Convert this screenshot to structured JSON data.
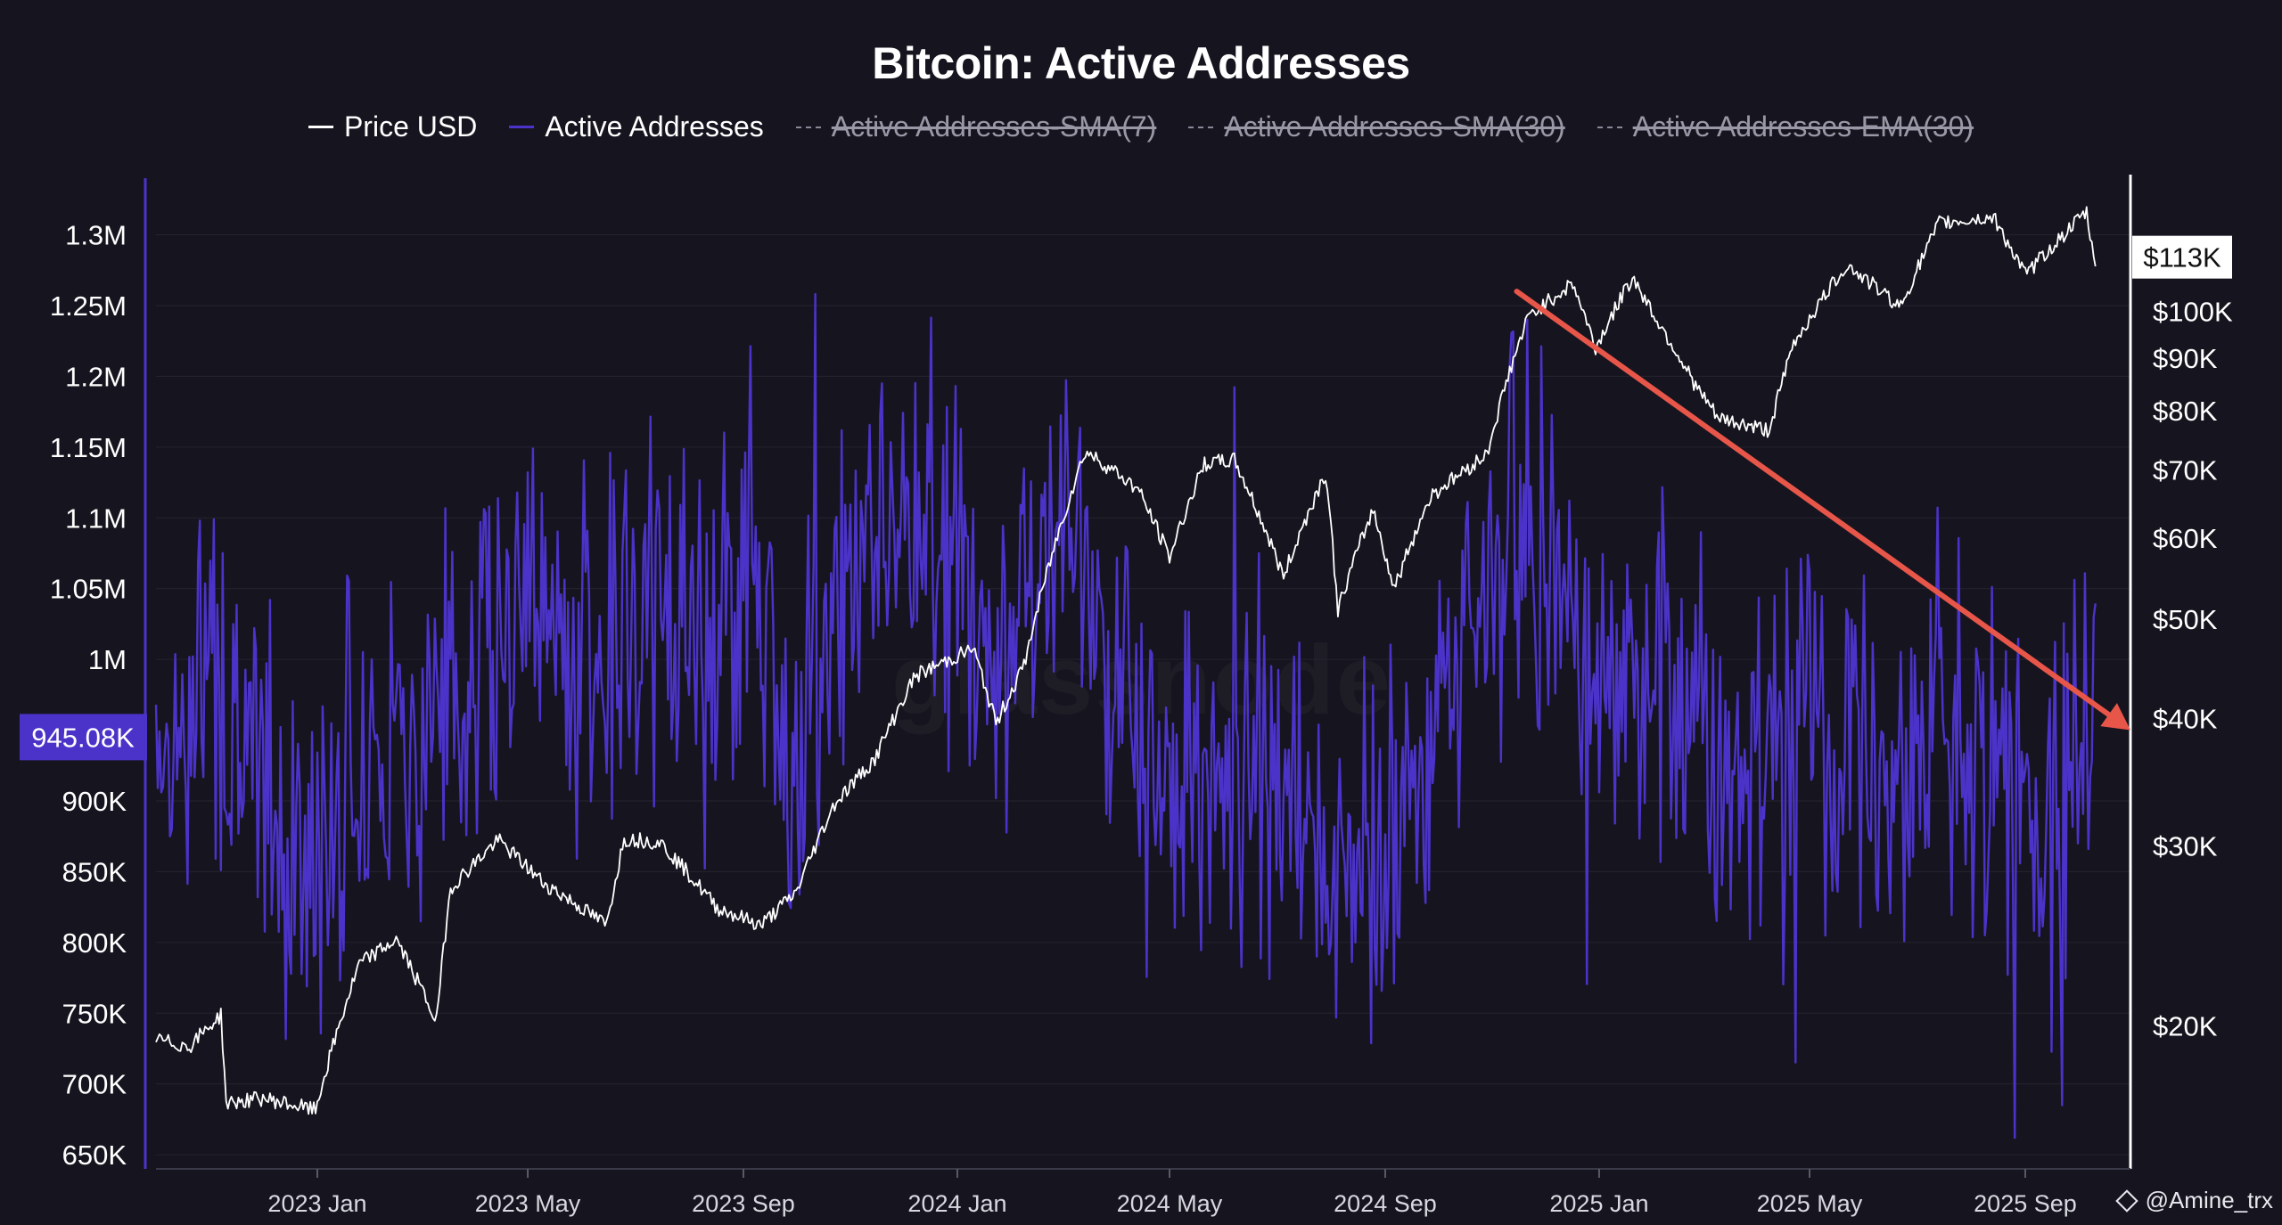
{
  "chart_data": {
    "type": "line",
    "title": "Bitcoin: Active Addresses",
    "legend": [
      {
        "name": "Price USD",
        "color": "#ffffff",
        "hidden": false
      },
      {
        "name": "Active Addresses",
        "color": "#4b33c9",
        "hidden": false
      },
      {
        "name": "Active Addresses-SMA(7)",
        "color": "#8a8896",
        "hidden": true
      },
      {
        "name": "Active Addresses-SMA(30)",
        "color": "#8a8896",
        "hidden": true
      },
      {
        "name": "Active Addresses-EMA(30)",
        "color": "#8a8896",
        "hidden": true
      }
    ],
    "x_axis": {
      "range": [
        "2022-10-01",
        "2025-10-31"
      ],
      "ticks": [
        {
          "label": "2023 Jan",
          "date": "2023-01-01"
        },
        {
          "label": "2023 May",
          "date": "2023-05-01"
        },
        {
          "label": "2023 Sep",
          "date": "2023-09-01"
        },
        {
          "label": "2024 Jan",
          "date": "2024-01-01"
        },
        {
          "label": "2024 May",
          "date": "2024-05-01"
        },
        {
          "label": "2024 Sep",
          "date": "2024-09-01"
        },
        {
          "label": "2025 Jan",
          "date": "2025-01-01"
        },
        {
          "label": "2025 May",
          "date": "2025-05-01"
        },
        {
          "label": "2025 Sep",
          "date": "2025-09-01"
        }
      ]
    },
    "y_left": {
      "range": [
        640000,
        1340000
      ],
      "ticks": [
        {
          "label": "1.3M",
          "value": 1300000
        },
        {
          "label": "1.25M",
          "value": 1250000
        },
        {
          "label": "1.2M",
          "value": 1200000
        },
        {
          "label": "1.15M",
          "value": 1150000
        },
        {
          "label": "1.1M",
          "value": 1100000
        },
        {
          "label": "1.05M",
          "value": 1050000
        },
        {
          "label": "1M",
          "value": 1000000
        },
        {
          "label": "900K",
          "value": 900000
        },
        {
          "label": "850K",
          "value": 850000
        },
        {
          "label": "800K",
          "value": 800000
        },
        {
          "label": "750K",
          "value": 750000
        },
        {
          "label": "700K",
          "value": 700000
        },
        {
          "label": "650K",
          "value": 650000
        }
      ],
      "current": {
        "label": "945.08K",
        "value": 945080
      }
    },
    "y_right": {
      "scale": "log",
      "range": [
        14500,
        135000
      ],
      "ticks": [
        {
          "label": "$100K",
          "value": 100000
        },
        {
          "label": "$90K",
          "value": 90000
        },
        {
          "label": "$80K",
          "value": 80000
        },
        {
          "label": "$70K",
          "value": 70000
        },
        {
          "label": "$60K",
          "value": 60000
        },
        {
          "label": "$50K",
          "value": 50000
        },
        {
          "label": "$40K",
          "value": 40000
        },
        {
          "label": "$30K",
          "value": 30000
        },
        {
          "label": "$20K",
          "value": 20000
        }
      ],
      "current": {
        "label": "$113K",
        "value": 113000
      }
    },
    "series": [
      {
        "name": "Price USD",
        "axis": "right",
        "points": [
          [
            "2022-10-01",
            19400
          ],
          [
            "2022-10-20",
            19100
          ],
          [
            "2022-11-07",
            20500
          ],
          [
            "2022-11-10",
            16800
          ],
          [
            "2022-12-01",
            17000
          ],
          [
            "2022-12-31",
            16550
          ],
          [
            "2023-01-13",
            19900
          ],
          [
            "2023-01-25",
            23000
          ],
          [
            "2023-02-15",
            24300
          ],
          [
            "2023-03-10",
            20200
          ],
          [
            "2023-03-18",
            27300
          ],
          [
            "2023-04-14",
            30400
          ],
          [
            "2023-05-10",
            27600
          ],
          [
            "2023-06-15",
            25100
          ],
          [
            "2023-06-25",
            30500
          ],
          [
            "2023-07-15",
            30300
          ],
          [
            "2023-08-17",
            26100
          ],
          [
            "2023-09-11",
            25100
          ],
          [
            "2023-10-01",
            27000
          ],
          [
            "2023-10-23",
            33000
          ],
          [
            "2023-11-15",
            36500
          ],
          [
            "2023-12-08",
            44000
          ],
          [
            "2024-01-10",
            46800
          ],
          [
            "2024-01-23",
            39500
          ],
          [
            "2024-02-08",
            45000
          ],
          [
            "2024-02-28",
            61000
          ],
          [
            "2024-03-14",
            73000
          ],
          [
            "2024-04-01",
            69500
          ],
          [
            "2024-04-13",
            67000
          ],
          [
            "2024-05-01",
            57500
          ],
          [
            "2024-05-21",
            71000
          ],
          [
            "2024-06-07",
            71500
          ],
          [
            "2024-07-05",
            55000
          ],
          [
            "2024-07-29",
            69500
          ],
          [
            "2024-08-05",
            51000
          ],
          [
            "2024-08-25",
            64000
          ],
          [
            "2024-09-06",
            53500
          ],
          [
            "2024-09-27",
            66000
          ],
          [
            "2024-10-29",
            72500
          ],
          [
            "2024-11-12",
            88500
          ],
          [
            "2024-11-22",
            99000
          ],
          [
            "2024-12-17",
            106500
          ],
          [
            "2024-12-30",
            92000
          ],
          [
            "2025-01-20",
            108000
          ],
          [
            "2025-02-03",
            98000
          ],
          [
            "2025-02-26",
            84000
          ],
          [
            "2025-03-10",
            78500
          ],
          [
            "2025-04-08",
            76500
          ],
          [
            "2025-04-22",
            93000
          ],
          [
            "2025-05-22",
            111000
          ],
          [
            "2025-06-22",
            101000
          ],
          [
            "2025-07-14",
            122000
          ],
          [
            "2025-08-14",
            123500
          ],
          [
            "2025-09-01",
            108500
          ],
          [
            "2025-10-06",
            125000
          ],
          [
            "2025-10-10",
            112000
          ],
          [
            "2025-10-15",
            113000
          ]
        ]
      },
      {
        "name": "Active Addresses",
        "axis": "left",
        "points": [
          [
            "2022-10-01",
            960000
          ],
          [
            "2022-10-15",
            930000
          ],
          [
            "2022-11-01",
            1000000
          ],
          [
            "2022-11-15",
            940000
          ],
          [
            "2022-12-01",
            900000
          ],
          [
            "2022-12-31",
            840000
          ],
          [
            "2023-01-15",
            920000
          ],
          [
            "2023-02-15",
            950000
          ],
          [
            "2023-03-15",
            980000
          ],
          [
            "2023-04-15",
            1020000
          ],
          [
            "2023-05-05",
            1050000
          ],
          [
            "2023-06-01",
            1000000
          ],
          [
            "2023-07-01",
            1030000
          ],
          [
            "2023-08-01",
            1010000
          ],
          [
            "2023-09-01",
            1050000
          ],
          [
            "2023-10-01",
            960000
          ],
          [
            "2023-11-01",
            1080000
          ],
          [
            "2023-12-01",
            1110000
          ],
          [
            "2024-01-01",
            1050000
          ],
          [
            "2024-02-01",
            1000000
          ],
          [
            "2024-03-01",
            1090000
          ],
          [
            "2024-04-01",
            1000000
          ],
          [
            "2024-05-01",
            940000
          ],
          [
            "2024-06-01",
            890000
          ],
          [
            "2024-07-01",
            900000
          ],
          [
            "2024-08-01",
            840000
          ],
          [
            "2024-09-01",
            870000
          ],
          [
            "2024-10-01",
            960000
          ],
          [
            "2024-11-01",
            1060000
          ],
          [
            "2024-11-20",
            1110000
          ],
          [
            "2024-12-15",
            1030000
          ],
          [
            "2025-01-15",
            960000
          ],
          [
            "2025-02-15",
            980000
          ],
          [
            "2025-03-15",
            920000
          ],
          [
            "2025-04-15",
            960000
          ],
          [
            "2025-05-15",
            940000
          ],
          [
            "2025-06-15",
            930000
          ],
          [
            "2025-07-15",
            960000
          ],
          [
            "2025-08-15",
            900000
          ],
          [
            "2025-09-15",
            890000
          ],
          [
            "2025-10-15",
            945080
          ]
        ],
        "noise_amplitude": 120000
      }
    ],
    "annotations": [
      {
        "type": "arrow",
        "color": "#e8564a",
        "from": [
          "2024-11-15",
          1260000
        ],
        "to": [
          "2025-10-31",
          950000
        ]
      }
    ],
    "watermark": "glassnode",
    "attribution": "@Amine_trx"
  }
}
